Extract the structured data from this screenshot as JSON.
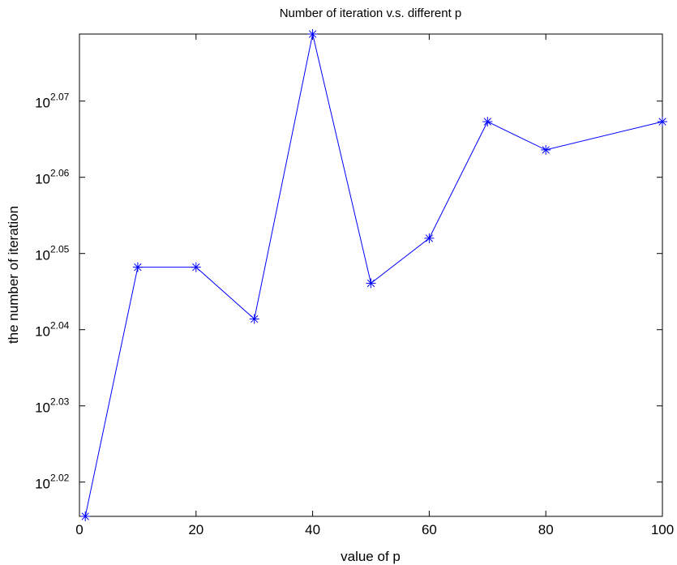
{
  "chart_data": {
    "type": "line",
    "title": "Number of iteration v.s. different p",
    "xlabel": "value of p",
    "ylabel": "the number of iteration",
    "x_scale": "linear",
    "y_scale": "log",
    "xlim": [
      0,
      100
    ],
    "ylim_exponent": [
      2.0155,
      2.0788
    ],
    "x_ticks": [
      0,
      20,
      40,
      60,
      80,
      100
    ],
    "y_tick_base": "10",
    "y_tick_exponents": [
      "2.02",
      "2.03",
      "2.04",
      "2.05",
      "2.06",
      "2.07"
    ],
    "grid": false,
    "legend": "none",
    "series": [
      {
        "color": "#0000ff",
        "marker": "asterisk",
        "x": [
          1,
          10,
          20,
          30,
          40,
          50,
          60,
          70,
          80,
          100
        ],
        "y_exponent": [
          2.0155,
          2.0482,
          2.0482,
          2.0414,
          2.0788,
          2.0461,
          2.052,
          2.0673,
          2.0636,
          2.0673
        ]
      }
    ]
  }
}
